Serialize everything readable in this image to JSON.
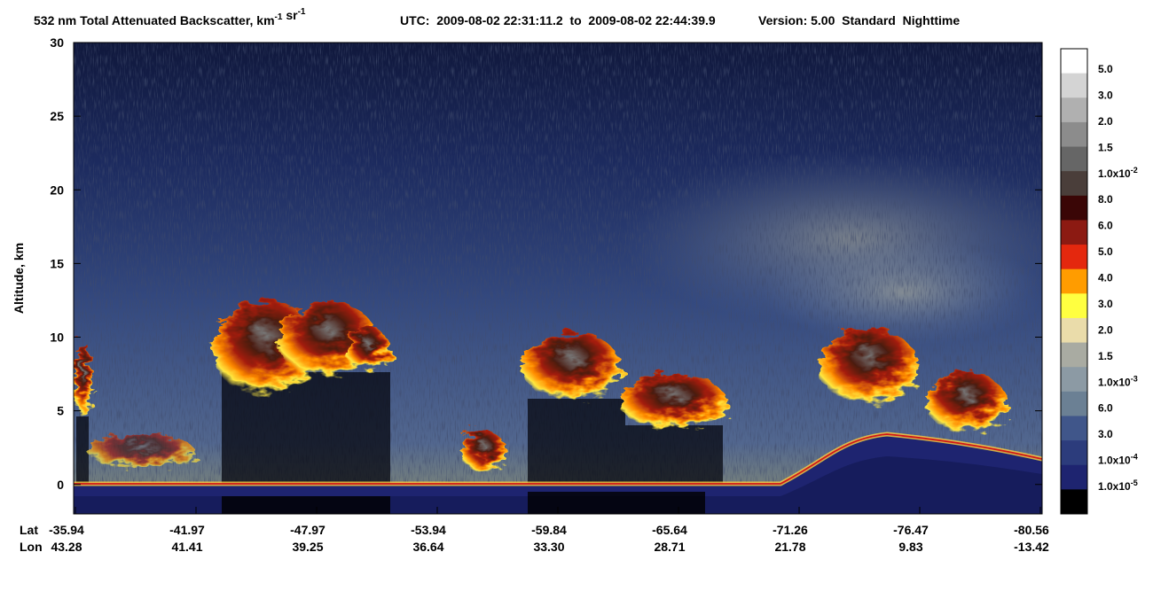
{
  "chart_data": {
    "type": "heatmap",
    "title_parts": [
      {
        "text": "532 nm Total Attenuated Backscatter, km",
        "sup": "-1"
      },
      {
        "text": " sr",
        "sup": "-1"
      }
    ],
    "time_range": "UTC:  2009-08-02 22:31:11.2  to  2009-08-02 22:44:39.9",
    "version": "Version: 5.00  Standard  Nighttime",
    "y_label": "Altitude, km",
    "ylim": [
      -2,
      30
    ],
    "yticks": [
      0,
      5,
      10,
      15,
      20,
      25,
      30
    ],
    "x_rows": [
      {
        "name": "Lat",
        "values": [
          -35.94,
          -41.97,
          -47.97,
          -53.94,
          -59.84,
          -65.64,
          -71.26,
          -76.47,
          -80.56
        ]
      },
      {
        "name": "Lon",
        "values": [
          43.28,
          41.41,
          39.25,
          36.64,
          {
            "value": 33.3,
            "label": "33.30"
          },
          28.71,
          21.78,
          9.83,
          -13.42
        ]
      }
    ],
    "colorbar": {
      "colors": [
        "#ffffff",
        "#d4d4d4",
        "#b0b0b0",
        "#8c8c8c",
        "#666666",
        "#4a3e3a",
        "#3a0606",
        "#8c1a12",
        "#e4280e",
        "#ff9c00",
        "#ffff40",
        "#eadcaa",
        "#a9aba2",
        "#8c9aa4",
        "#6b8094",
        "#40568a",
        "#2c3c7c",
        "#1e2470",
        "#000000"
      ],
      "labels": [
        {
          "text": "5.0"
        },
        {
          "text": "3.0"
        },
        {
          "text": "2.0"
        },
        {
          "text": "1.5"
        },
        {
          "text": "1.0x10",
          "sup": "-2"
        },
        {
          "text": "8.0"
        },
        {
          "text": "6.0"
        },
        {
          "text": "5.0"
        },
        {
          "text": "4.0"
        },
        {
          "text": "3.0"
        },
        {
          "text": "2.0"
        },
        {
          "text": "1.5"
        },
        {
          "text": "1.0x10",
          "sup": "-3"
        },
        {
          "text": "6.0"
        },
        {
          "text": "3.0"
        },
        {
          "text": "1.0x10",
          "sup": "-4"
        },
        {
          "text": "1.0x10",
          "sup": "-5"
        }
      ]
    }
  }
}
